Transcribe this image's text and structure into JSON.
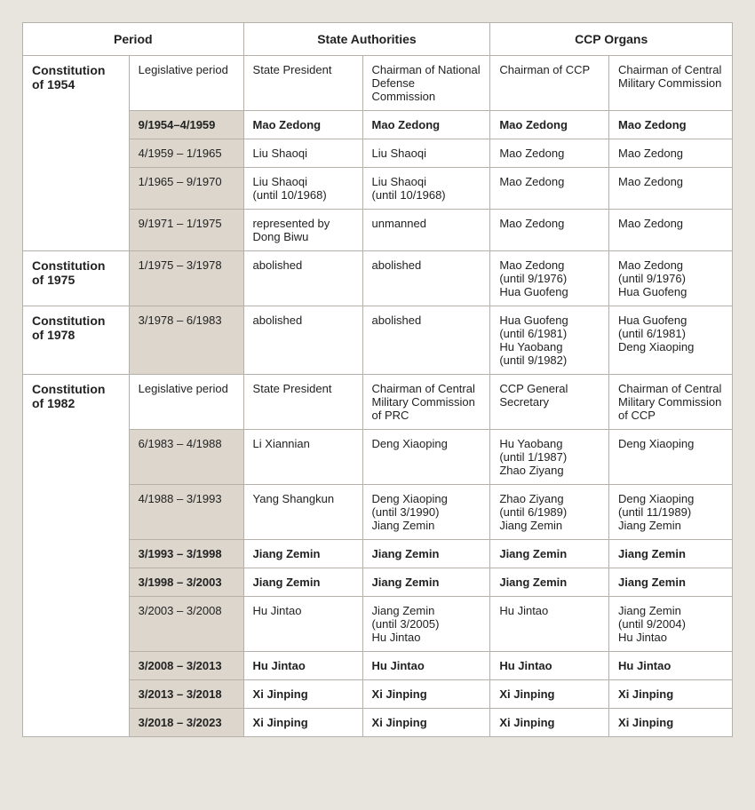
{
  "headers": {
    "h0": "Period",
    "h1": "State Authorities",
    "h2": "CCP Organs"
  },
  "sections": [
    {
      "label": "Constitution of 1954",
      "rowspan": 5,
      "rows": [
        {
          "bold": false,
          "periodShaded": false,
          "cells": [
            "Legislative period",
            "State President",
            "Chairman of National Defense Commission",
            "Chairman of CCP",
            "Chairman of Central Military Commission"
          ]
        },
        {
          "bold": true,
          "periodShaded": true,
          "cells": [
            "9/1954–4/1959",
            "Mao Zedong",
            "Mao Zedong",
            "Mao Zedong",
            "Mao Zedong"
          ]
        },
        {
          "bold": false,
          "periodShaded": true,
          "cells": [
            "4/1959 – 1/1965",
            "Liu Shaoqi",
            "Liu Shaoqi",
            "Mao Zedong",
            "Mao Zedong"
          ]
        },
        {
          "bold": false,
          "periodShaded": true,
          "cells": [
            "1/1965 – 9/1970",
            "Liu Shaoqi\n(until 10/1968)",
            "Liu Shaoqi\n(until 10/1968)",
            "Mao Zedong",
            "Mao Zedong"
          ]
        },
        {
          "bold": false,
          "periodShaded": true,
          "cells": [
            "9/1971 – 1/1975",
            "represented by Dong Biwu",
            "unmanned",
            "Mao Zedong",
            "Mao Zedong"
          ]
        }
      ]
    },
    {
      "label": "Constitution of 1975",
      "rowspan": 1,
      "rows": [
        {
          "bold": false,
          "periodShaded": true,
          "cells": [
            "1/1975 – 3/1978",
            "abolished",
            "abolished",
            "Mao Zedong\n(until 9/1976)\nHua Guofeng",
            "Mao Zedong\n(until 9/1976)\nHua Guofeng"
          ]
        }
      ]
    },
    {
      "label": "Constitution of 1978",
      "rowspan": 1,
      "rows": [
        {
          "bold": false,
          "periodShaded": true,
          "cells": [
            "3/1978 – 6/1983",
            "abolished",
            "abolished",
            "Hua Guofeng\n(until 6/1981)\nHu Yaobang\n(until 9/1982)",
            "Hua Guofeng\n(until 6/1981)\nDeng Xiaoping"
          ]
        }
      ]
    },
    {
      "label": "Constitution of 1982",
      "rowspan": 9,
      "rows": [
        {
          "bold": false,
          "periodShaded": false,
          "cells": [
            "Legislative period",
            "State President",
            "Chairman of Central Military Commission of PRC",
            "CCP General Secretary",
            "Chairman of Central Military Commission of CCP"
          ]
        },
        {
          "bold": false,
          "periodShaded": true,
          "cells": [
            "6/1983 – 4/1988",
            "Li Xiannian",
            "Deng Xiaoping",
            "Hu Yaobang\n(until 1/1987)\nZhao Ziyang",
            "Deng Xiaoping"
          ]
        },
        {
          "bold": false,
          "periodShaded": true,
          "cells": [
            "4/1988 – 3/1993",
            "Yang Shangkun",
            "Deng Xiaoping\n(until 3/1990)\nJiang Zemin",
            "Zhao Ziyang\n(until 6/1989)\nJiang Zemin",
            "Deng Xiaoping\n(until 11/1989)\nJiang Zemin"
          ]
        },
        {
          "bold": true,
          "periodShaded": true,
          "cells": [
            "3/1993 – 3/1998",
            "Jiang Zemin",
            "Jiang Zemin",
            "Jiang Zemin",
            "Jiang Zemin"
          ]
        },
        {
          "bold": true,
          "periodShaded": true,
          "cells": [
            "3/1998 – 3/2003",
            "Jiang Zemin",
            "Jiang Zemin",
            "Jiang Zemin",
            "Jiang Zemin"
          ]
        },
        {
          "bold": false,
          "periodShaded": true,
          "cells": [
            "3/2003 – 3/2008",
            "Hu Jintao",
            "Jiang Zemin\n(until 3/2005)\nHu Jintao",
            "Hu Jintao",
            "Jiang Zemin\n(until 9/2004)\nHu Jintao"
          ]
        },
        {
          "bold": true,
          "periodShaded": true,
          "cells": [
            "3/2008 – 3/2013",
            "Hu Jintao",
            "Hu Jintao",
            "Hu Jintao",
            "Hu Jintao"
          ]
        },
        {
          "bold": true,
          "periodShaded": true,
          "cells": [
            "3/2013 – 3/2018",
            "Xi Jinping",
            "Xi Jinping",
            "Xi Jinping",
            "Xi Jinping"
          ]
        },
        {
          "bold": true,
          "periodShaded": true,
          "cells": [
            "3/2018 – 3/2023",
            "Xi Jinping",
            "Xi Jinping",
            "Xi Jinping",
            "Xi Jinping"
          ]
        }
      ]
    }
  ]
}
